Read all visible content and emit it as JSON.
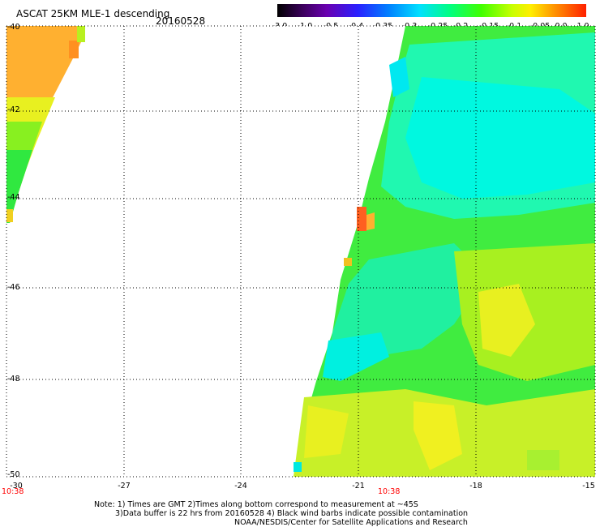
{
  "header": {
    "title": "ASCAT 25KM MLE-1 descending",
    "date": "20160528"
  },
  "colorbar": {
    "ticks": [
      "-3.0",
      "-1.0",
      "-0.5",
      "-0.4",
      "-0.35",
      "-0.3",
      "-0.25",
      "-0.2",
      "-0.15",
      "-0.1",
      "-0.05",
      "0.0",
      "1.0"
    ],
    "colors": [
      "#000000",
      "#6a00b0",
      "#2a20ff",
      "#0080ff",
      "#00e0ff",
      "#00ff80",
      "#40ff00",
      "#c8ff00",
      "#ffee00",
      "#ff9000",
      "#ff2000"
    ]
  },
  "map": {
    "lat_labels": [
      "-40",
      "-42",
      "-44",
      "-46",
      "-48",
      "-50"
    ],
    "lon_labels": [
      "-30",
      "-27",
      "-24",
      "-21",
      "-18",
      "-15"
    ],
    "time_labels": [
      "10:38",
      "10:38"
    ],
    "swaths": [
      {
        "name": "west-swath",
        "region": "top-left",
        "dominant_values": "0.0 to -0.15"
      },
      {
        "name": "east-swath",
        "region": "east",
        "dominant_values": "-0.3 to -0.05"
      }
    ]
  },
  "notes": {
    "line1": "Note: 1) Times are GMT 2)Times along bottom correspond to measurement at ~45S",
    "line2": "3)Data buffer is 22 hrs from 20160528 4) Black wind barbs indicate possible contamination",
    "line3": "NOAA/NESDIS/Center for Satellite Applications and Research"
  }
}
